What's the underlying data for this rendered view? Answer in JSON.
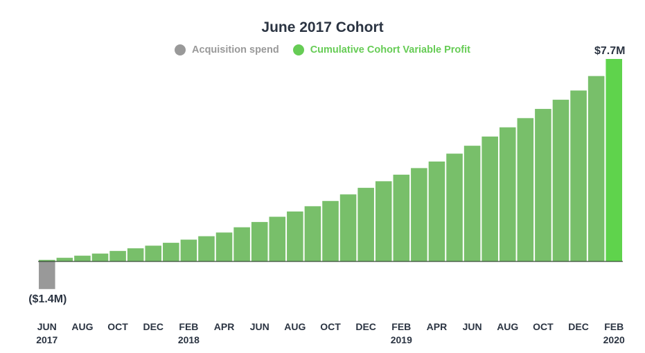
{
  "chart_data": {
    "type": "bar",
    "title": "June 2017 Cohort",
    "legend": [
      {
        "label": "Acquisition spend",
        "color": "#999999"
      },
      {
        "label": "Cumulative Cohort Variable Profit",
        "color": "#66cc55"
      }
    ],
    "legend_position": "top-center",
    "units": "$M",
    "categories": [
      "JUN 2017",
      "JUL 2017",
      "AUG 2017",
      "SEP 2017",
      "OCT 2017",
      "NOV 2017",
      "DEC 2017",
      "JAN 2018",
      "FEB 2018",
      "MAR 2018",
      "APR 2018",
      "MAY 2018",
      "JUN 2018",
      "JUL 2018",
      "AUG 2018",
      "SEP 2018",
      "OCT 2018",
      "NOV 2018",
      "DEC 2018",
      "JAN 2019",
      "FEB 2019",
      "MAR 2019",
      "APR 2019",
      "MAY 2019",
      "JUN 2019",
      "JUL 2019",
      "AUG 2019",
      "SEP 2019",
      "OCT 2019",
      "NOV 2019",
      "DEC 2019",
      "JAN 2020",
      "FEB 2020"
    ],
    "acquisition_spend": {
      "category": "JUN 2017",
      "value": -1.4
    },
    "values": [
      0.06,
      0.14,
      0.22,
      0.3,
      0.4,
      0.5,
      0.6,
      0.71,
      0.83,
      0.96,
      1.1,
      1.3,
      1.5,
      1.7,
      1.9,
      2.1,
      2.3,
      2.55,
      2.8,
      3.05,
      3.3,
      3.55,
      3.8,
      4.1,
      4.4,
      4.75,
      5.1,
      5.45,
      5.8,
      6.15,
      6.5,
      7.05,
      7.7
    ],
    "data_labels": [
      {
        "text": "($1.4M)",
        "category": "JUN 2017"
      },
      {
        "text": "$7.7M",
        "category": "FEB 2020"
      }
    ],
    "x_tick_labels": [
      {
        "index": 0,
        "month": "JUN",
        "year": "2017"
      },
      {
        "index": 2,
        "month": "AUG",
        "year": ""
      },
      {
        "index": 4,
        "month": "OCT",
        "year": ""
      },
      {
        "index": 6,
        "month": "DEC",
        "year": ""
      },
      {
        "index": 8,
        "month": "FEB",
        "year": "2018"
      },
      {
        "index": 10,
        "month": "APR",
        "year": ""
      },
      {
        "index": 12,
        "month": "JUN",
        "year": ""
      },
      {
        "index": 14,
        "month": "AUG",
        "year": ""
      },
      {
        "index": 16,
        "month": "OCT",
        "year": ""
      },
      {
        "index": 18,
        "month": "DEC",
        "year": ""
      },
      {
        "index": 20,
        "month": "FEB",
        "year": "2019"
      },
      {
        "index": 22,
        "month": "APR",
        "year": ""
      },
      {
        "index": 24,
        "month": "JUN",
        "year": ""
      },
      {
        "index": 26,
        "month": "AUG",
        "year": ""
      },
      {
        "index": 28,
        "month": "OCT",
        "year": ""
      },
      {
        "index": 30,
        "month": "DEC",
        "year": ""
      },
      {
        "index": 32,
        "month": "FEB",
        "year": "2020"
      }
    ],
    "highlight_last_bar_color": "#5fd34c",
    "bar_color": "#78bf6a",
    "grid": false
  }
}
